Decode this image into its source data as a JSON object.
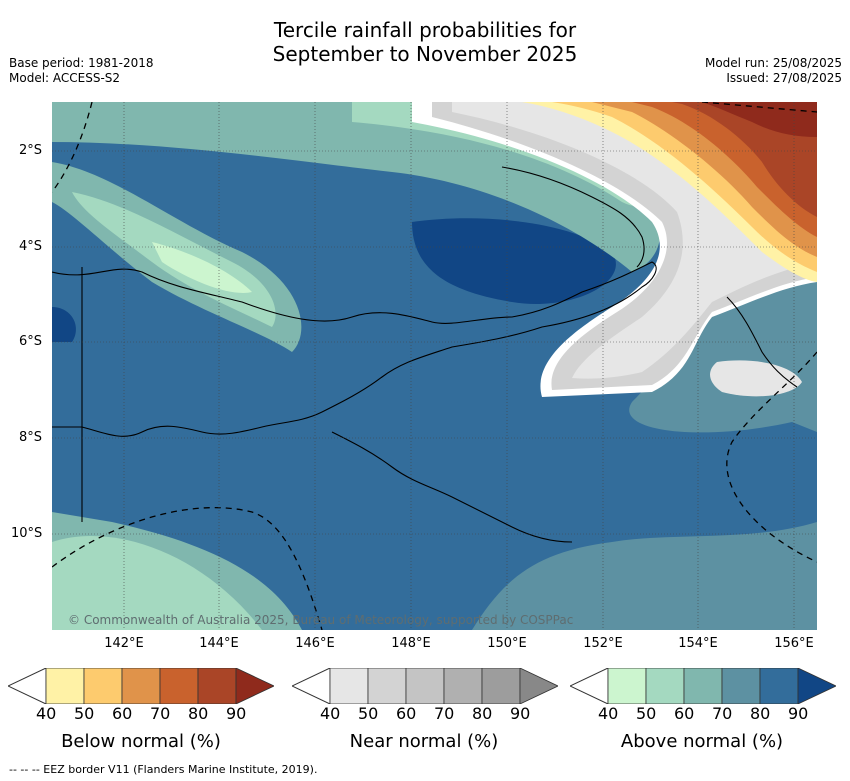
{
  "title": {
    "line1": "Tercile rainfall probabilities for",
    "line2": "September to November 2025"
  },
  "meta_left": {
    "base_period": "Base period: 1981-2018",
    "model": "Model: ACCESS-S2"
  },
  "meta_right": {
    "model_run": "Model run: 25/08/2025",
    "issued": "Issued: 27/08/2025"
  },
  "map": {
    "lat_ticks": [
      "2°S",
      "4°S",
      "6°S",
      "8°S",
      "10°S"
    ],
    "lon_ticks": [
      "142°E",
      "144°E",
      "146°E",
      "148°E",
      "150°E",
      "152°E",
      "154°E",
      "156°E"
    ],
    "copyright": "© Commonwealth of Australia 2025, Bureau of Meteorology, supported by COSPPac"
  },
  "legend": {
    "ticks": [
      "40",
      "50",
      "60",
      "70",
      "80",
      "90"
    ],
    "below": {
      "label": "Below normal (%)",
      "colors": [
        "#fff2a6",
        "#fdcb6e",
        "#e0934a",
        "#c9622d",
        "#aa4527",
        "#8f2a1c"
      ]
    },
    "near": {
      "label": "Near normal (%)",
      "colors": [
        "#e6e6e6",
        "#d3d3d3",
        "#c4c4c4",
        "#b0b0b0",
        "#9d9d9d",
        "#888888"
      ]
    },
    "above": {
      "label": "Above normal (%)",
      "colors": [
        "#ccf5cf",
        "#a4d9c0",
        "#80b7ae",
        "#5d91a2",
        "#336d9b",
        "#114685"
      ]
    }
  },
  "footer": "--  --  -- EEZ border V11 (Flanders Marine Institute, 2019)."
}
